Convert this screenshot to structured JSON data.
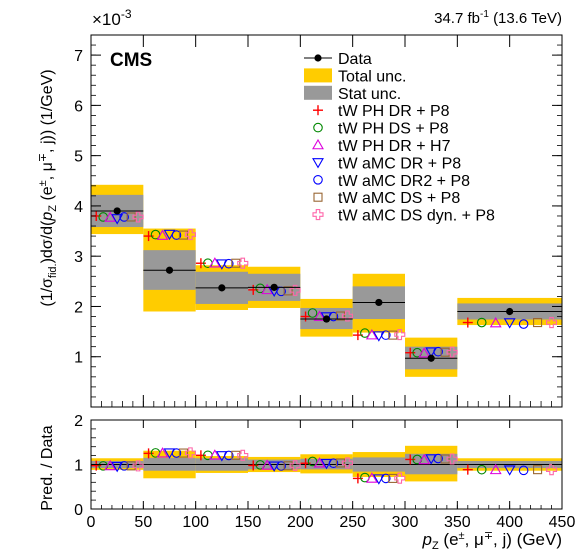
{
  "chart_data": {
    "type": "histogram",
    "lumi_label": "34.7 fb",
    "lumi_superscript": "-1",
    "lumi_energy": "(13.6 TeV)",
    "experiment": "CMS",
    "y_exponent_base": "×10",
    "y_exponent": "-3",
    "ylabel_parts": [
      "(1/σ",
      "fid.",
      ")dσ/d(",
      "p",
      "Z",
      " (e",
      "±",
      ", μ",
      "∓",
      ", j)) (1/GeV)"
    ],
    "xlabel_parts": [
      "p",
      "Z",
      " (e",
      "±",
      ", μ",
      "∓",
      ", j) (GeV)"
    ],
    "ratio_ylabel": "Pred. / Data",
    "bins": [
      0,
      50,
      100,
      150,
      200,
      250,
      300,
      350,
      450
    ],
    "xlim": [
      0,
      450
    ],
    "ylim": [
      0,
      7.4
    ],
    "ratio_ylim": [
      0,
      2
    ],
    "x_ticks": [
      0,
      50,
      100,
      150,
      200,
      250,
      300,
      350,
      400,
      450
    ],
    "y_ticks": [
      1,
      2,
      3,
      4,
      5,
      6,
      7
    ],
    "ratio_y_ticks": [
      0,
      1,
      2
    ],
    "data": [
      3.9,
      2.72,
      2.37,
      2.38,
      1.75,
      2.08,
      0.97,
      1.9
    ],
    "total_unc": [
      [
        3.44,
        4.42
      ],
      [
        1.9,
        3.55
      ],
      [
        1.93,
        2.82
      ],
      [
        1.97,
        2.79
      ],
      [
        1.4,
        2.15
      ],
      [
        1.48,
        2.65
      ],
      [
        0.6,
        1.38
      ],
      [
        1.63,
        2.17
      ]
    ],
    "stat_unc": [
      [
        3.58,
        4.22
      ],
      [
        2.33,
        3.12
      ],
      [
        2.05,
        2.69
      ],
      [
        2.11,
        2.65
      ],
      [
        1.55,
        1.97
      ],
      [
        1.75,
        2.4
      ],
      [
        0.75,
        1.2
      ],
      [
        1.74,
        2.06
      ]
    ],
    "ratio_total_unc": [
      [
        0.88,
        1.14
      ],
      [
        0.69,
        1.31
      ],
      [
        0.81,
        1.19
      ],
      [
        0.83,
        1.17
      ],
      [
        0.8,
        1.23
      ],
      [
        0.72,
        1.28
      ],
      [
        0.62,
        1.42
      ],
      [
        0.86,
        1.14
      ]
    ],
    "ratio_stat_unc": [
      [
        0.92,
        1.08
      ],
      [
        0.86,
        1.15
      ],
      [
        0.86,
        1.14
      ],
      [
        0.89,
        1.11
      ],
      [
        0.89,
        1.13
      ],
      [
        0.84,
        1.16
      ],
      [
        0.78,
        1.24
      ],
      [
        0.92,
        1.08
      ]
    ],
    "legend_position": "top-right",
    "legend": [
      {
        "label": "Data",
        "marker": "data"
      },
      {
        "label": "Total unc.",
        "marker": "band",
        "color": "#ffcc00"
      },
      {
        "label": "Stat unc.",
        "marker": "band",
        "color": "#999999"
      }
    ],
    "series": [
      {
        "name": "tW PH DR + P8",
        "marker": "plus",
        "color": "#ff0000",
        "values": [
          3.8,
          3.4,
          2.86,
          2.33,
          1.8,
          1.43,
          1.08,
          1.68
        ]
      },
      {
        "name": "tW PH DS + P8",
        "marker": "circle",
        "color": "#008800",
        "values": [
          3.78,
          3.43,
          2.86,
          2.36,
          1.87,
          1.47,
          1.08,
          1.68
        ]
      },
      {
        "name": "tW PH DR + H7",
        "marker": "triangle-up",
        "color": "#dd00dd",
        "values": [
          3.77,
          3.41,
          2.86,
          2.33,
          1.8,
          1.43,
          1.07,
          1.67
        ]
      },
      {
        "name": "tW aMC DR + P8",
        "marker": "triangle-down",
        "color": "#0000ff",
        "values": [
          3.75,
          3.44,
          2.85,
          2.31,
          1.8,
          1.42,
          1.1,
          1.68
        ]
      },
      {
        "name": "tW aMC DR2 + P8",
        "marker": "circle",
        "color": "#0000ff",
        "values": [
          3.78,
          3.42,
          2.85,
          2.3,
          1.8,
          1.43,
          1.1,
          1.65
        ]
      },
      {
        "name": "tW aMC DS + P8",
        "marker": "square",
        "color": "#996633",
        "values": [
          3.78,
          3.42,
          2.86,
          2.31,
          1.81,
          1.43,
          1.09,
          1.68
        ]
      },
      {
        "name": "tW aMC DS dyn. + P8",
        "marker": "plus-open",
        "color": "#ff66aa",
        "values": [
          3.78,
          3.43,
          2.86,
          2.32,
          1.81,
          1.44,
          1.09,
          1.68
        ]
      }
    ]
  }
}
